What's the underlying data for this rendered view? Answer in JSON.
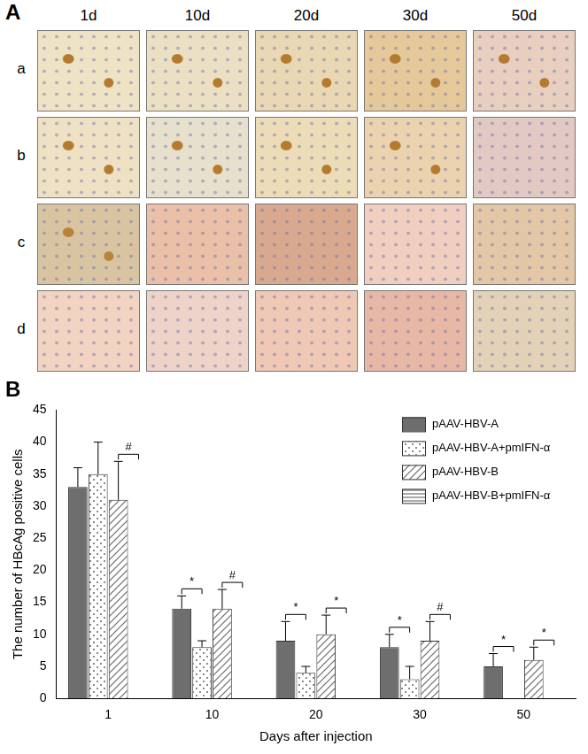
{
  "panel_labels": [
    "A",
    "B"
  ],
  "image_grid": {
    "columns": [
      "1d",
      "10d",
      "20d",
      "30d",
      "50d"
    ],
    "rows": [
      "a",
      "b",
      "c",
      "d"
    ]
  },
  "chart_data": {
    "type": "bar",
    "categories": [
      "1",
      "10",
      "20",
      "30",
      "50"
    ],
    "x_label": "Days after injection",
    "y_label": "The number of HBcAg positive cells",
    "ylim": [
      0,
      45
    ],
    "yticks": [
      0,
      5,
      10,
      15,
      20,
      25,
      30,
      35,
      40,
      45
    ],
    "grid": false,
    "legend": "upper-right",
    "series": [
      {
        "name": "pAAV-HBV-A",
        "color": "#6e6e6e",
        "values": [
          33,
          14,
          9,
          8,
          5
        ],
        "errors": [
          3,
          2,
          3,
          2,
          2
        ]
      },
      {
        "name": "pAAV-HBV-A+pmIFN-α",
        "color": "#8a8a8a",
        "values": [
          35,
          8,
          4,
          3,
          0
        ],
        "errors": [
          5,
          1,
          1,
          2,
          0
        ]
      },
      {
        "name": "pAAV-HBV-B",
        "color": "#6a6a6a",
        "values": [
          31,
          14,
          10,
          9,
          6
        ],
        "errors": [
          6,
          3,
          3,
          3,
          2
        ]
      },
      {
        "name": "pAAV-HBV-B+pmIFN-α",
        "color": "#555555",
        "values": [
          0,
          0,
          0,
          0,
          0
        ],
        "errors": [
          0,
          0,
          0,
          0,
          0
        ]
      }
    ],
    "annotations": [
      {
        "category": "1",
        "series": [
          "pAAV-HBV-B",
          "pAAV-HBV-B+pmIFN-α"
        ],
        "label": "#"
      },
      {
        "category": "10",
        "series": [
          "pAAV-HBV-A",
          "pAAV-HBV-A+pmIFN-α"
        ],
        "label": "*"
      },
      {
        "category": "10",
        "series": [
          "pAAV-HBV-B",
          "pAAV-HBV-B+pmIFN-α"
        ],
        "label": "#"
      },
      {
        "category": "20",
        "series": [
          "pAAV-HBV-A",
          "pAAV-HBV-A+pmIFN-α"
        ],
        "label": "*"
      },
      {
        "category": "20",
        "series": [
          "pAAV-HBV-B",
          "pAAV-HBV-B+pmIFN-α"
        ],
        "label": "*"
      },
      {
        "category": "30",
        "series": [
          "pAAV-HBV-A",
          "pAAV-HBV-A+pmIFN-α"
        ],
        "label": "*"
      },
      {
        "category": "30",
        "series": [
          "pAAV-HBV-B",
          "pAAV-HBV-B+pmIFN-α"
        ],
        "label": "#"
      },
      {
        "category": "50",
        "series": [
          "pAAV-HBV-A",
          "pAAV-HBV-A+pmIFN-α"
        ],
        "label": "*"
      },
      {
        "category": "50",
        "series": [
          "pAAV-HBV-B",
          "pAAV-HBV-B+pmIFN-α"
        ],
        "label": "*"
      }
    ]
  }
}
